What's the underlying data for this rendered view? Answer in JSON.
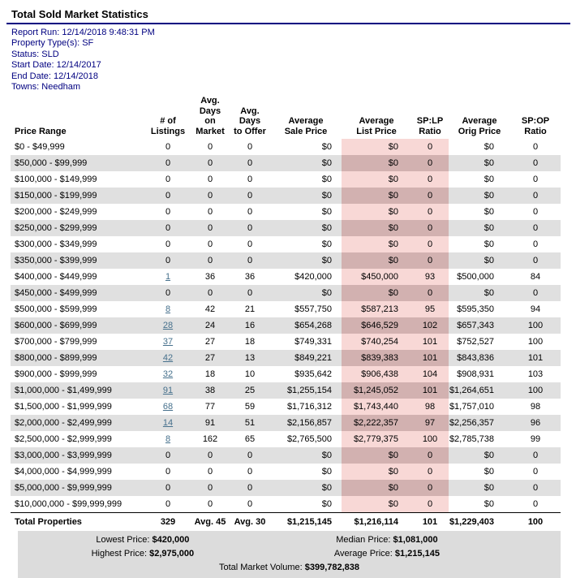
{
  "title": "Total Sold Market Statistics",
  "meta": [
    "Report Run: 12/14/2018 9:48:31 PM",
    "Property Type(s): SF",
    "Status: SLD",
    "Start Date: 12/14/2017",
    "End Date: 12/14/2018",
    "Towns: Needham"
  ],
  "colors": {
    "accent_navy": "#000080",
    "link_blue": "#46708c",
    "row_stripe_gray": "#e0e0e0",
    "highlight_pink": "#f8d8d6",
    "highlight_pink_on_gray": "#d2b1b0",
    "summary_gray": "#dcdcdc"
  },
  "table": {
    "headers": [
      {
        "l1": "",
        "l2": "Price Range"
      },
      {
        "l1": "# of",
        "l2": "Listings"
      },
      {
        "l1": "Avg. Days",
        "l2": "on Market"
      },
      {
        "l1": "Avg. Days",
        "l2": "to Offer"
      },
      {
        "l1": "Average",
        "l2": "Sale Price"
      },
      {
        "l1": "Average",
        "l2": "List Price"
      },
      {
        "l1": "SP:LP",
        "l2": "Ratio"
      },
      {
        "l1": "Average",
        "l2": "Orig Price"
      },
      {
        "l1": "SP:OP",
        "l2": "Ratio"
      }
    ],
    "rows": [
      {
        "range": "$0 - $49,999",
        "listings": "0",
        "link": false,
        "dom": "0",
        "dto": "0",
        "sale": "$0",
        "list": "$0",
        "splp": "0",
        "orig": "$0",
        "spop": "0"
      },
      {
        "range": "$50,000 - $99,999",
        "listings": "0",
        "link": false,
        "dom": "0",
        "dto": "0",
        "sale": "$0",
        "list": "$0",
        "splp": "0",
        "orig": "$0",
        "spop": "0"
      },
      {
        "range": "$100,000 - $149,999",
        "listings": "0",
        "link": false,
        "dom": "0",
        "dto": "0",
        "sale": "$0",
        "list": "$0",
        "splp": "0",
        "orig": "$0",
        "spop": "0"
      },
      {
        "range": "$150,000 - $199,999",
        "listings": "0",
        "link": false,
        "dom": "0",
        "dto": "0",
        "sale": "$0",
        "list": "$0",
        "splp": "0",
        "orig": "$0",
        "spop": "0"
      },
      {
        "range": "$200,000 - $249,999",
        "listings": "0",
        "link": false,
        "dom": "0",
        "dto": "0",
        "sale": "$0",
        "list": "$0",
        "splp": "0",
        "orig": "$0",
        "spop": "0"
      },
      {
        "range": "$250,000 - $299,999",
        "listings": "0",
        "link": false,
        "dom": "0",
        "dto": "0",
        "sale": "$0",
        "list": "$0",
        "splp": "0",
        "orig": "$0",
        "spop": "0"
      },
      {
        "range": "$300,000 - $349,999",
        "listings": "0",
        "link": false,
        "dom": "0",
        "dto": "0",
        "sale": "$0",
        "list": "$0",
        "splp": "0",
        "orig": "$0",
        "spop": "0"
      },
      {
        "range": "$350,000 - $399,999",
        "listings": "0",
        "link": false,
        "dom": "0",
        "dto": "0",
        "sale": "$0",
        "list": "$0",
        "splp": "0",
        "orig": "$0",
        "spop": "0"
      },
      {
        "range": "$400,000 - $449,999",
        "listings": "1",
        "link": true,
        "dom": "36",
        "dto": "36",
        "sale": "$420,000",
        "list": "$450,000",
        "splp": "93",
        "orig": "$500,000",
        "spop": "84"
      },
      {
        "range": "$450,000 - $499,999",
        "listings": "0",
        "link": false,
        "dom": "0",
        "dto": "0",
        "sale": "$0",
        "list": "$0",
        "splp": "0",
        "orig": "$0",
        "spop": "0"
      },
      {
        "range": "$500,000 - $599,999",
        "listings": "8",
        "link": true,
        "dom": "42",
        "dto": "21",
        "sale": "$557,750",
        "list": "$587,213",
        "splp": "95",
        "orig": "$595,350",
        "spop": "94"
      },
      {
        "range": "$600,000 - $699,999",
        "listings": "28",
        "link": true,
        "dom": "24",
        "dto": "16",
        "sale": "$654,268",
        "list": "$646,529",
        "splp": "102",
        "orig": "$657,343",
        "spop": "100"
      },
      {
        "range": "$700,000 - $799,999",
        "listings": "37",
        "link": true,
        "dom": "27",
        "dto": "18",
        "sale": "$749,331",
        "list": "$740,254",
        "splp": "101",
        "orig": "$752,527",
        "spop": "100"
      },
      {
        "range": "$800,000 - $899,999",
        "listings": "42",
        "link": true,
        "dom": "27",
        "dto": "13",
        "sale": "$849,221",
        "list": "$839,383",
        "splp": "101",
        "orig": "$843,836",
        "spop": "101"
      },
      {
        "range": "$900,000 - $999,999",
        "listings": "32",
        "link": true,
        "dom": "18",
        "dto": "10",
        "sale": "$935,642",
        "list": "$906,438",
        "splp": "104",
        "orig": "$908,931",
        "spop": "103"
      },
      {
        "range": "$1,000,000 - $1,499,999",
        "listings": "91",
        "link": true,
        "dom": "38",
        "dto": "25",
        "sale": "$1,255,154",
        "list": "$1,245,052",
        "splp": "101",
        "orig": "$1,264,651",
        "spop": "100"
      },
      {
        "range": "$1,500,000 - $1,999,999",
        "listings": "68",
        "link": true,
        "dom": "77",
        "dto": "59",
        "sale": "$1,716,312",
        "list": "$1,743,440",
        "splp": "98",
        "orig": "$1,757,010",
        "spop": "98"
      },
      {
        "range": "$2,000,000 - $2,499,999",
        "listings": "14",
        "link": true,
        "dom": "91",
        "dto": "51",
        "sale": "$2,156,857",
        "list": "$2,222,357",
        "splp": "97",
        "orig": "$2,256,357",
        "spop": "96"
      },
      {
        "range": "$2,500,000 - $2,999,999",
        "listings": "8",
        "link": true,
        "dom": "162",
        "dto": "65",
        "sale": "$2,765,500",
        "list": "$2,779,375",
        "splp": "100",
        "orig": "$2,785,738",
        "spop": "99"
      },
      {
        "range": "$3,000,000 - $3,999,999",
        "listings": "0",
        "link": false,
        "dom": "0",
        "dto": "0",
        "sale": "$0",
        "list": "$0",
        "splp": "0",
        "orig": "$0",
        "spop": "0"
      },
      {
        "range": "$4,000,000 - $4,999,999",
        "listings": "0",
        "link": false,
        "dom": "0",
        "dto": "0",
        "sale": "$0",
        "list": "$0",
        "splp": "0",
        "orig": "$0",
        "spop": "0"
      },
      {
        "range": "$5,000,000 - $9,999,999",
        "listings": "0",
        "link": false,
        "dom": "0",
        "dto": "0",
        "sale": "$0",
        "list": "$0",
        "splp": "0",
        "orig": "$0",
        "spop": "0"
      },
      {
        "range": "$10,000,000 - $99,999,999",
        "listings": "0",
        "link": false,
        "dom": "0",
        "dto": "0",
        "sale": "$0",
        "list": "$0",
        "splp": "0",
        "orig": "$0",
        "spop": "0"
      }
    ],
    "total": {
      "label": "Total Properties",
      "listings": "329",
      "dom": "Avg. 45",
      "dto": "Avg. 30",
      "sale": "$1,215,145",
      "list": "$1,216,114",
      "splp": "101",
      "orig": "$1,229,403",
      "spop": "100"
    }
  },
  "summary": {
    "lowest_label": "Lowest Price:",
    "lowest_value": "$420,000",
    "median_label": "Median Price:",
    "median_value": "$1,081,000",
    "highest_label": "Highest Price:",
    "highest_value": "$2,975,000",
    "average_label": "Average Price:",
    "average_value": "$1,215,145",
    "volume_label": "Total Market Volume:",
    "volume_value": "$399,782,838"
  }
}
